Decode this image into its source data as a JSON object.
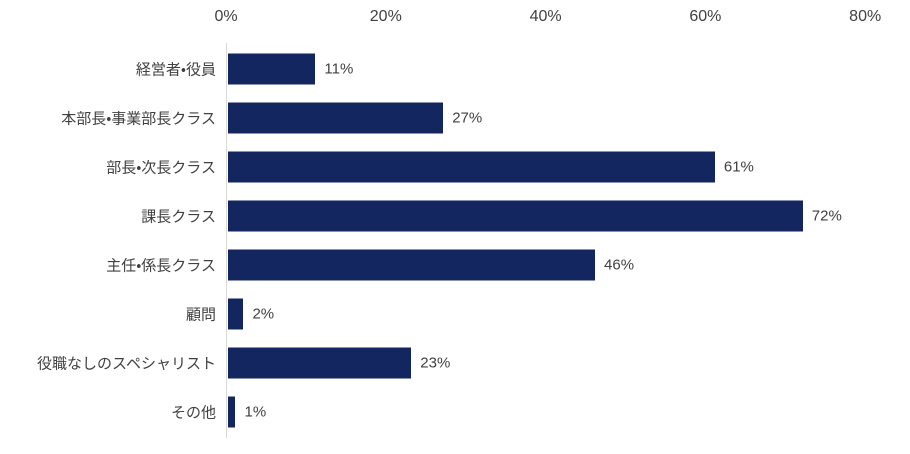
{
  "chart_data": {
    "type": "bar",
    "orientation": "horizontal",
    "title": "",
    "xlabel": "",
    "ylabel": "",
    "categories": [
      "経営者・役員",
      "本部長・事業部長クラス",
      "部長・次長クラス",
      "課長クラス",
      "主任・係長クラス",
      "顧問",
      "役職なしのスペシャリスト",
      "その他"
    ],
    "values": [
      11,
      27,
      61,
      72,
      46,
      2,
      23,
      1
    ],
    "value_labels": [
      "11%",
      "27%",
      "61%",
      "72%",
      "46%",
      "2%",
      "23%",
      "1%"
    ],
    "x_ticks": [
      "0%",
      "20%",
      "40%",
      "60%",
      "80%"
    ],
    "x_tick_values": [
      0,
      20,
      40,
      60,
      80
    ],
    "xlim": [
      0,
      80
    ],
    "grid": false,
    "legend": false,
    "colors": {
      "bar": "#13265F",
      "axis_line": "#d9d9d9",
      "text": "#404040",
      "background": "#ffffff"
    }
  }
}
